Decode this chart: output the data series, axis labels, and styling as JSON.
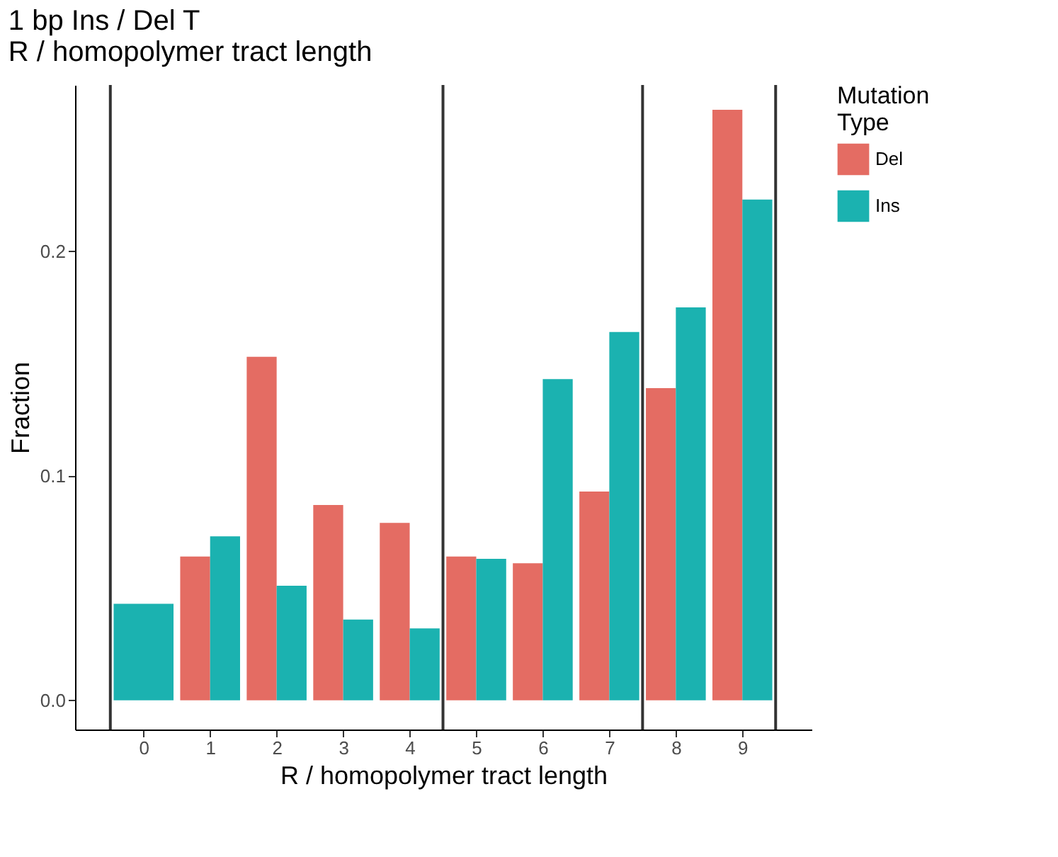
{
  "chart_data": {
    "type": "bar",
    "title": "1 bp Ins / Del T",
    "subtitle": "R / homopolymer tract length",
    "xlabel": "R / homopolymer tract length",
    "ylabel": "Fraction",
    "legend_title": "Mutation Type",
    "x": [
      0,
      1,
      2,
      3,
      4,
      5,
      6,
      7,
      8,
      9
    ],
    "series": [
      {
        "name": "Del",
        "color": "#e46c63",
        "values": [
          null,
          0.064,
          0.153,
          0.087,
          0.079,
          0.064,
          0.061,
          0.093,
          0.139,
          0.263
        ]
      },
      {
        "name": "Ins",
        "color": "#1bb2b0",
        "values": [
          0.043,
          0.073,
          0.051,
          0.036,
          0.032,
          0.063,
          0.143,
          0.164,
          0.175,
          0.223
        ]
      }
    ],
    "xlim": [
      -1.03,
      10.04
    ],
    "xticks": [
      0,
      1,
      2,
      3,
      4,
      5,
      6,
      7,
      8,
      9
    ],
    "ylim": [
      -0.013,
      0.274
    ],
    "yticks": [
      {
        "value": 0,
        "label": "0.0"
      },
      {
        "value": 0.1,
        "label": "0.1"
      },
      {
        "value": 0.2,
        "label": "0.2"
      }
    ],
    "ref_lines": [
      {
        "axis": "x",
        "value": -0.5,
        "color": "#333333"
      },
      {
        "axis": "x",
        "value": 4.5,
        "color": "#333333"
      },
      {
        "axis": "x",
        "value": 7.5,
        "color": "#333333"
      },
      {
        "axis": "x",
        "value": 9.5,
        "color": "#333333"
      }
    ],
    "grid": false,
    "legend": "right"
  }
}
